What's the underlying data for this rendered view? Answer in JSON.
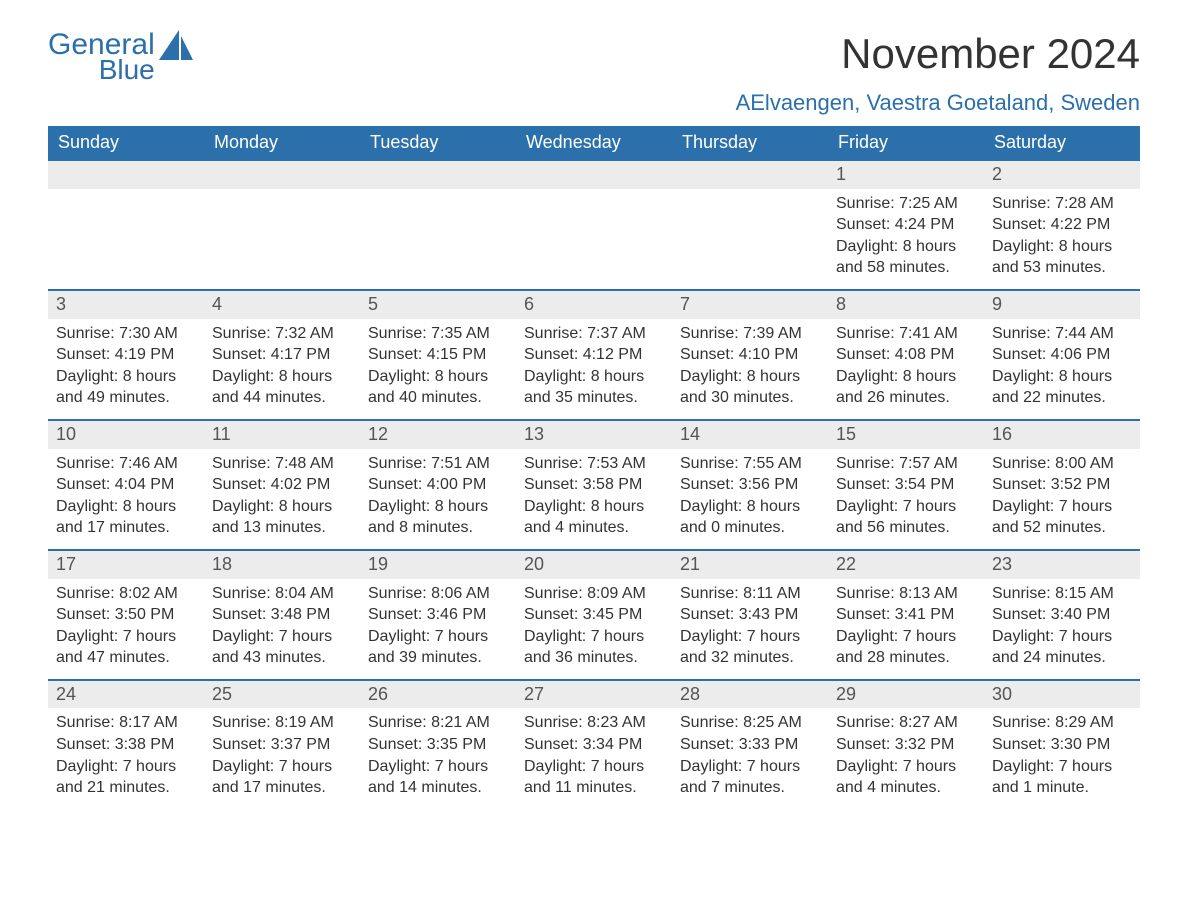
{
  "brand": {
    "general": "General",
    "blue": "Blue"
  },
  "title": "November 2024",
  "location": "AElvaengen, Vaestra Goetaland, Sweden",
  "colors": {
    "header_bg": "#2b6fab",
    "header_text": "#ffffff",
    "rule": "#2b6fab",
    "daynum_bg": "#ececec",
    "body_text": "#333333",
    "brand": "#2b6fab",
    "page_bg": "#ffffff"
  },
  "typography": {
    "title_fontsize": 42,
    "location_fontsize": 22,
    "header_fontsize": 18,
    "daynum_fontsize": 18,
    "cell_fontsize": 16
  },
  "daysOfWeek": [
    "Sunday",
    "Monday",
    "Tuesday",
    "Wednesday",
    "Thursday",
    "Friday",
    "Saturday"
  ],
  "labels": {
    "sunrise": "Sunrise:",
    "sunset": "Sunset:",
    "daylight": "Daylight:"
  },
  "weeks": [
    [
      null,
      null,
      null,
      null,
      null,
      {
        "n": "1",
        "sunrise": "7:25 AM",
        "sunset": "4:24 PM",
        "daylight": "8 hours and 58 minutes."
      },
      {
        "n": "2",
        "sunrise": "7:28 AM",
        "sunset": "4:22 PM",
        "daylight": "8 hours and 53 minutes."
      }
    ],
    [
      {
        "n": "3",
        "sunrise": "7:30 AM",
        "sunset": "4:19 PM",
        "daylight": "8 hours and 49 minutes."
      },
      {
        "n": "4",
        "sunrise": "7:32 AM",
        "sunset": "4:17 PM",
        "daylight": "8 hours and 44 minutes."
      },
      {
        "n": "5",
        "sunrise": "7:35 AM",
        "sunset": "4:15 PM",
        "daylight": "8 hours and 40 minutes."
      },
      {
        "n": "6",
        "sunrise": "7:37 AM",
        "sunset": "4:12 PM",
        "daylight": "8 hours and 35 minutes."
      },
      {
        "n": "7",
        "sunrise": "7:39 AM",
        "sunset": "4:10 PM",
        "daylight": "8 hours and 30 minutes."
      },
      {
        "n": "8",
        "sunrise": "7:41 AM",
        "sunset": "4:08 PM",
        "daylight": "8 hours and 26 minutes."
      },
      {
        "n": "9",
        "sunrise": "7:44 AM",
        "sunset": "4:06 PM",
        "daylight": "8 hours and 22 minutes."
      }
    ],
    [
      {
        "n": "10",
        "sunrise": "7:46 AM",
        "sunset": "4:04 PM",
        "daylight": "8 hours and 17 minutes."
      },
      {
        "n": "11",
        "sunrise": "7:48 AM",
        "sunset": "4:02 PM",
        "daylight": "8 hours and 13 minutes."
      },
      {
        "n": "12",
        "sunrise": "7:51 AM",
        "sunset": "4:00 PM",
        "daylight": "8 hours and 8 minutes."
      },
      {
        "n": "13",
        "sunrise": "7:53 AM",
        "sunset": "3:58 PM",
        "daylight": "8 hours and 4 minutes."
      },
      {
        "n": "14",
        "sunrise": "7:55 AM",
        "sunset": "3:56 PM",
        "daylight": "8 hours and 0 minutes."
      },
      {
        "n": "15",
        "sunrise": "7:57 AM",
        "sunset": "3:54 PM",
        "daylight": "7 hours and 56 minutes."
      },
      {
        "n": "16",
        "sunrise": "8:00 AM",
        "sunset": "3:52 PM",
        "daylight": "7 hours and 52 minutes."
      }
    ],
    [
      {
        "n": "17",
        "sunrise": "8:02 AM",
        "sunset": "3:50 PM",
        "daylight": "7 hours and 47 minutes."
      },
      {
        "n": "18",
        "sunrise": "8:04 AM",
        "sunset": "3:48 PM",
        "daylight": "7 hours and 43 minutes."
      },
      {
        "n": "19",
        "sunrise": "8:06 AM",
        "sunset": "3:46 PM",
        "daylight": "7 hours and 39 minutes."
      },
      {
        "n": "20",
        "sunrise": "8:09 AM",
        "sunset": "3:45 PM",
        "daylight": "7 hours and 36 minutes."
      },
      {
        "n": "21",
        "sunrise": "8:11 AM",
        "sunset": "3:43 PM",
        "daylight": "7 hours and 32 minutes."
      },
      {
        "n": "22",
        "sunrise": "8:13 AM",
        "sunset": "3:41 PM",
        "daylight": "7 hours and 28 minutes."
      },
      {
        "n": "23",
        "sunrise": "8:15 AM",
        "sunset": "3:40 PM",
        "daylight": "7 hours and 24 minutes."
      }
    ],
    [
      {
        "n": "24",
        "sunrise": "8:17 AM",
        "sunset": "3:38 PM",
        "daylight": "7 hours and 21 minutes."
      },
      {
        "n": "25",
        "sunrise": "8:19 AM",
        "sunset": "3:37 PM",
        "daylight": "7 hours and 17 minutes."
      },
      {
        "n": "26",
        "sunrise": "8:21 AM",
        "sunset": "3:35 PM",
        "daylight": "7 hours and 14 minutes."
      },
      {
        "n": "27",
        "sunrise": "8:23 AM",
        "sunset": "3:34 PM",
        "daylight": "7 hours and 11 minutes."
      },
      {
        "n": "28",
        "sunrise": "8:25 AM",
        "sunset": "3:33 PM",
        "daylight": "7 hours and 7 minutes."
      },
      {
        "n": "29",
        "sunrise": "8:27 AM",
        "sunset": "3:32 PM",
        "daylight": "7 hours and 4 minutes."
      },
      {
        "n": "30",
        "sunrise": "8:29 AM",
        "sunset": "3:30 PM",
        "daylight": "7 hours and 1 minute."
      }
    ]
  ]
}
